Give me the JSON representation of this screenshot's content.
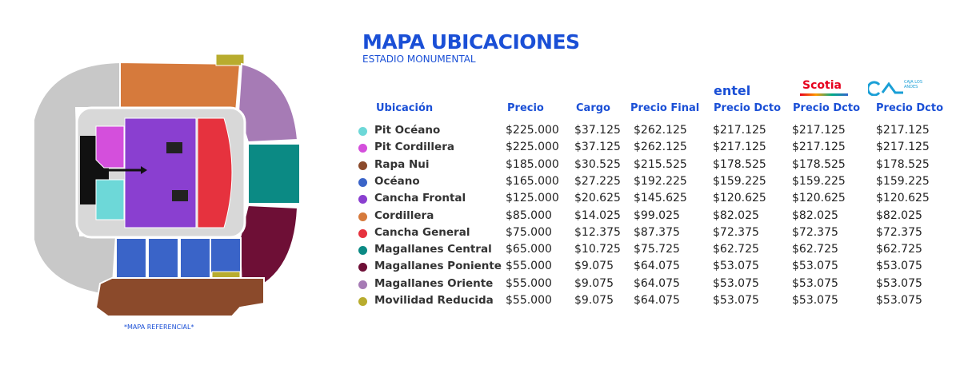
{
  "header": {
    "title": "MAPA UBICACIONES",
    "subtitle": "ESTADIO MONUMENTAL"
  },
  "map_note": "*MAPA REFERENCIAL*",
  "logos": {
    "entel": "entel",
    "scotia": "Scotia",
    "caja": "CAJA LOS ANDES"
  },
  "table": {
    "columns": [
      "Ubicación",
      "Precio",
      "Cargo",
      "Precio Final",
      "Precio Dcto",
      "Precio Dcto",
      "Precio Dcto"
    ],
    "rows": [
      {
        "color": "#6dd8d8",
        "cells": [
          "Pit Océano",
          "$225.000",
          "$37.125",
          "$262.125",
          "$217.125",
          "$217.125",
          "$217.125"
        ]
      },
      {
        "color": "#d44fdc",
        "cells": [
          "Pit Cordillera",
          "$225.000",
          "$37.125",
          "$262.125",
          "$217.125",
          "$217.125",
          "$217.125"
        ]
      },
      {
        "color": "#8b4a2b",
        "cells": [
          "Rapa Nui",
          "$185.000",
          "$30.525",
          "$215.525",
          "$178.525",
          "$178.525",
          "$178.525"
        ]
      },
      {
        "color": "#3a64c8",
        "cells": [
          "Océano",
          "$165.000",
          "$27.225",
          "$192.225",
          "$159.225",
          "$159.225",
          "$159.225"
        ]
      },
      {
        "color": "#8a3fd0",
        "cells": [
          "Cancha Frontal",
          "$125.000",
          "$20.625",
          "$145.625",
          "$120.625",
          "$120.625",
          "$120.625"
        ]
      },
      {
        "color": "#d67a3c",
        "cells": [
          "Cordillera",
          "$85.000",
          "$14.025",
          "$99.025",
          "$82.025",
          "$82.025",
          "$82.025"
        ]
      },
      {
        "color": "#e6323e",
        "cells": [
          "Cancha General",
          "$75.000",
          "$12.375",
          "$87.375",
          "$72.375",
          "$72.375",
          "$72.375"
        ]
      },
      {
        "color": "#0b8a84",
        "cells": [
          "Magallanes Central",
          "$65.000",
          "$10.725",
          "$75.725",
          "$62.725",
          "$62.725",
          "$62.725"
        ]
      },
      {
        "color": "#6e0f36",
        "cells": [
          "Magallanes Poniente",
          "$55.000",
          "$9.075",
          "$64.075",
          "$53.075",
          "$53.075",
          "$53.075"
        ]
      },
      {
        "color": "#a67bb5",
        "cells": [
          "Magallanes Oriente",
          "$55.000",
          "$9.075",
          "$64.075",
          "$53.075",
          "$53.075",
          "$53.075"
        ]
      },
      {
        "color": "#b8ac2e",
        "cells": [
          "Movilidad Reducida",
          "$55.000",
          "$9.075",
          "$64.075",
          "$53.075",
          "$53.075",
          "$53.075"
        ]
      }
    ]
  }
}
